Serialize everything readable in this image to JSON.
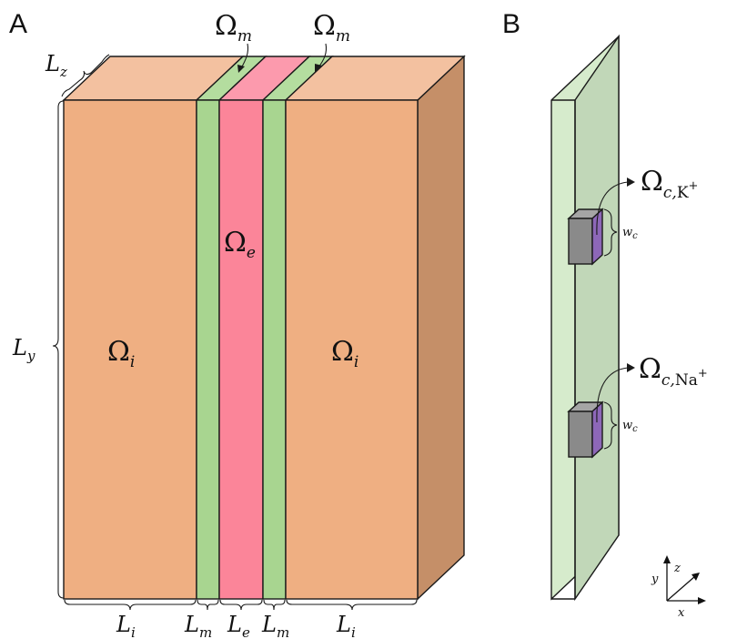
{
  "panels": {
    "a": "A",
    "b": "B"
  },
  "domains": {
    "intracellular": {
      "symbol": "Ω",
      "sub": "i"
    },
    "extracellular": {
      "symbol": "Ω",
      "sub": "e"
    },
    "membrane": {
      "symbol": "Ω",
      "sub": "m"
    }
  },
  "dimensions": {
    "lz": {
      "main": "L",
      "sub": "z"
    },
    "ly": {
      "main": "L",
      "sub": "y"
    },
    "li": {
      "main": "L",
      "sub": "i"
    },
    "lm": {
      "main": "L",
      "sub": "m"
    },
    "le": {
      "main": "L",
      "sub": "e"
    }
  },
  "channels": {
    "k": {
      "symbol": "Ω",
      "sub": "c,",
      "ion": "K",
      "charge": "+"
    },
    "na": {
      "symbol": "Ω",
      "sub": "c,",
      "ion": "Na",
      "charge": "+"
    },
    "width": {
      "main": "w",
      "sub": "c"
    }
  },
  "axes": {
    "x": "x",
    "y": "y",
    "z": "z"
  },
  "colors": {
    "intracellular_front": "#efaf82",
    "intracellular_top": "#f3c1a0",
    "side_face": "#c58f68",
    "membrane_front": "#a8d590",
    "membrane_top": "#b4dd9f",
    "extracellular_front": "#fb8599",
    "extracellular_top": "#fc9aad",
    "membrane_slab_front": "#c1d7b8",
    "membrane_slab_side": "#d6ebcc",
    "channel_grey": "#8a8a8a",
    "channel_top": "#a5a5a5",
    "channel_purple": "#8d67b8"
  }
}
